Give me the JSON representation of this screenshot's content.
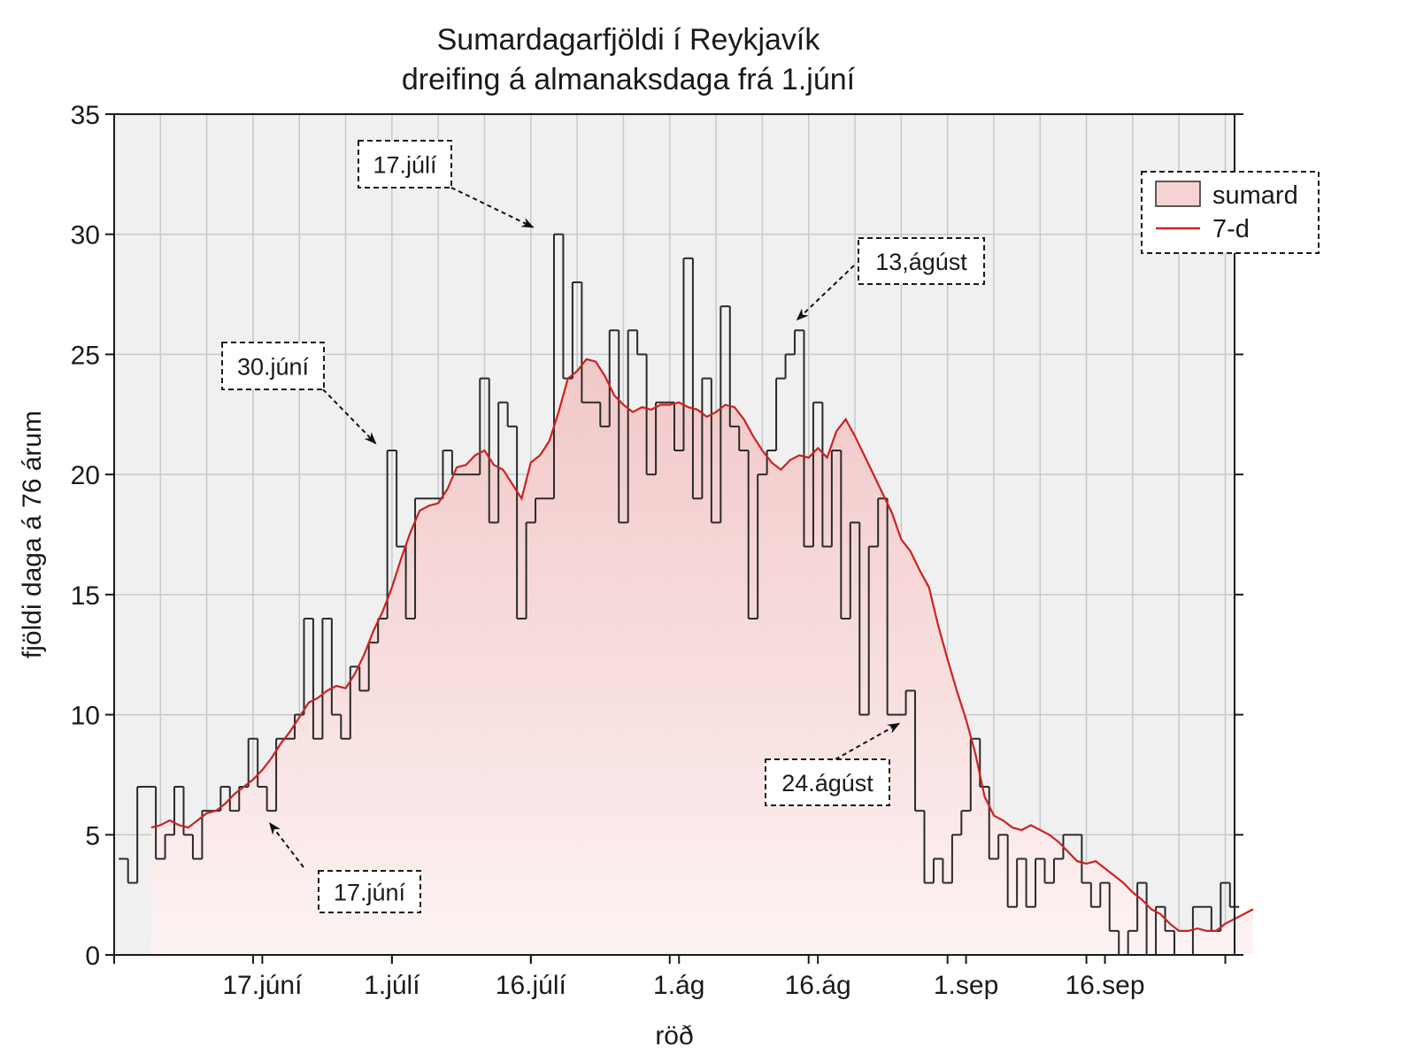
{
  "chart_data": {
    "type": "histogram",
    "title": "Sumardagarfjöldi í Reykjavík",
    "subtitle": "dreifing á almanaksdaga frá 1.júní",
    "xlabel": "röð",
    "ylabel": "fjöldi daga á 76 árum",
    "ylim": [
      0,
      35
    ],
    "yticks": [
      0,
      5,
      10,
      15,
      20,
      25,
      30,
      35
    ],
    "xlim": [
      "2023-06-01",
      "2023-09-30"
    ],
    "xtick_dates": [
      "2023-06-17",
      "2023-07-01",
      "2023-07-16",
      "2023-08-01",
      "2023-08-16",
      "2023-09-01",
      "2023-09-16"
    ],
    "xtick_labels": [
      "17.júní",
      "1.júlí",
      "16.júlí",
      "1.ág",
      "16.ág",
      "1.sep",
      "16.sep"
    ],
    "grid": true,
    "legend_position": "top-right",
    "colors": {
      "line": "#cc2222",
      "step": "#2a2a2a",
      "fill": "#f5d3d3",
      "plot_bg": "#f0f0f0",
      "grid": "#c8c8c8"
    },
    "series": [
      {
        "name": "sumard",
        "kind": "step",
        "x_start": "2023-06-02",
        "values": [
          4,
          3,
          7,
          7,
          4,
          5,
          7,
          5,
          4,
          6,
          6,
          7,
          6,
          7,
          9,
          7,
          6,
          9,
          9,
          10,
          14,
          9,
          14,
          10,
          9,
          12,
          11,
          13,
          14,
          21,
          17,
          14,
          19,
          19,
          19,
          21,
          20,
          20,
          20,
          24,
          18,
          23,
          22,
          14,
          18,
          19,
          19,
          30,
          24,
          28,
          23,
          23,
          22,
          26,
          18,
          26,
          25,
          20,
          23,
          23,
          21,
          29,
          19,
          24,
          18,
          27,
          22,
          21,
          14,
          20,
          21,
          24,
          25,
          26,
          17,
          23,
          17,
          21,
          14,
          18,
          10,
          17,
          19,
          10,
          10,
          11,
          6,
          3,
          4,
          3,
          5,
          6,
          9,
          7,
          4,
          5,
          2,
          4,
          2,
          4,
          3,
          4,
          5,
          5,
          3,
          2,
          3,
          1,
          0,
          1,
          3,
          0,
          2,
          1,
          0,
          0,
          2,
          2,
          1,
          3,
          2
        ]
      },
      {
        "name": "7-d",
        "kind": "line",
        "x_start": "2023-06-05",
        "values": [
          5.3,
          5.4,
          5.6,
          5.4,
          5.3,
          5.6,
          5.9,
          6.0,
          6.3,
          6.7,
          7.0,
          7.3,
          7.7,
          8.2,
          8.8,
          9.3,
          9.9,
          10.5,
          10.7,
          11.0,
          11.2,
          11.1,
          11.7,
          12.5,
          13.5,
          14.3,
          15.3,
          16.5,
          17.6,
          18.5,
          18.7,
          18.8,
          19.4,
          20.3,
          20.4,
          20.8,
          21.0,
          20.4,
          20.2,
          19.6,
          19.0,
          20.5,
          20.8,
          21.4,
          22.6,
          24.0,
          24.3,
          24.8,
          24.7,
          24.1,
          23.3,
          22.9,
          22.6,
          22.8,
          22.7,
          22.9,
          22.9,
          23.0,
          22.8,
          22.7,
          22.4,
          22.6,
          22.9,
          22.8,
          22.3,
          21.6,
          21.0,
          20.5,
          20.2,
          20.6,
          20.8,
          20.7,
          21.1,
          20.7,
          21.8,
          22.3,
          21.6,
          20.8,
          20.0,
          19.2,
          18.4,
          17.3,
          16.8,
          16.0,
          15.3,
          13.7,
          12.3,
          11.0,
          9.8,
          8.4,
          6.6,
          5.8,
          5.6,
          5.3,
          5.2,
          5.4,
          5.2,
          5.0,
          4.7,
          4.3,
          3.9,
          3.8,
          3.9,
          3.6,
          3.3,
          3.0,
          2.6,
          2.3,
          1.9,
          1.7,
          1.3,
          1.0,
          1.0,
          1.1,
          1.0,
          1.0,
          1.3,
          1.5,
          1.7,
          1.9
        ]
      }
    ],
    "legend": [
      {
        "label": "sumard"
      },
      {
        "label": "7-d"
      }
    ],
    "annotations": [
      {
        "text": "17.júní",
        "target_date": "2023-06-18",
        "target_value": 6
      },
      {
        "text": "30.júní",
        "target_date": "2023-06-30",
        "target_value": 21
      },
      {
        "text": "17.júlí",
        "target_date": "2023-07-17",
        "target_value": 30
      },
      {
        "text": "13,ágúst",
        "target_date": "2023-08-13",
        "target_value": 26
      },
      {
        "text": "24.ágúst",
        "target_date": "2023-08-24",
        "target_value": 10
      }
    ]
  }
}
